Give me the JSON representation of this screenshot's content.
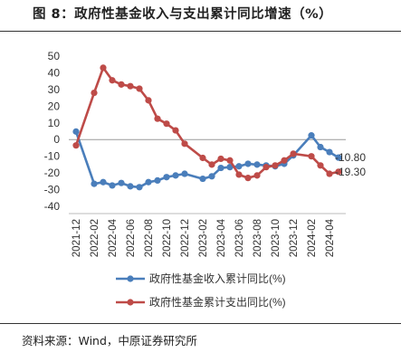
{
  "title": "图 8：政府性基金收入与支出累计同比增速（%）",
  "source": "资料来源：Wind，中原证券研究所",
  "chart_data": {
    "type": "line",
    "x": [
      "2021-12",
      "2022-01",
      "2022-02",
      "2022-03",
      "2022-04",
      "2022-05",
      "2022-06",
      "2022-07",
      "2022-08",
      "2022-09",
      "2022-10",
      "2022-11",
      "2022-12",
      "2023-01",
      "2023-02",
      "2023-03",
      "2023-04",
      "2023-05",
      "2023-06",
      "2023-07",
      "2023-08",
      "2023-09",
      "2023-10",
      "2023-11",
      "2023-12",
      "2024-01",
      "2024-02",
      "2024-03",
      "2024-04",
      "2024-05"
    ],
    "x_tick_labels": [
      "2021-12",
      "2022-02",
      "2022-04",
      "2022-06",
      "2022-08",
      "2022-10",
      "2022-12",
      "2023-02",
      "2023-04",
      "2023-06",
      "2023-08",
      "2023-10",
      "2023-12",
      "2024-02",
      "2024-04"
    ],
    "ylim": [
      -40,
      50
    ],
    "yticks": [
      -40,
      -30,
      -20,
      -10,
      0,
      10,
      20,
      30,
      40,
      50
    ],
    "grid": false,
    "legend_position": "bottom",
    "series": [
      {
        "name": "政府性基金收入累计同比(%)",
        "color": "#4A7EBB",
        "values": [
          4.8,
          null,
          -26.5,
          -25.5,
          -27.5,
          -26.0,
          -28.0,
          -28.5,
          -25.5,
          -24.5,
          -22.5,
          -21.5,
          -20.5,
          null,
          -23.5,
          -22.0,
          -17.0,
          -16.5,
          -16.0,
          -14.5,
          -15.0,
          -15.5,
          -16.0,
          -14.5,
          -9.5,
          null,
          2.5,
          -4.5,
          -7.5,
          -10.8
        ],
        "end_label": "-10.80"
      },
      {
        "name": "政府性基金累计支出同比(%)",
        "color": "#BE4B48",
        "values": [
          -3.5,
          null,
          28.0,
          43.0,
          35.5,
          33.0,
          32.0,
          30.5,
          23.5,
          12.5,
          9.5,
          5.5,
          -2.5,
          null,
          -11.0,
          -15.0,
          -11.5,
          -12.5,
          -21.0,
          -23.0,
          -21.5,
          -16.5,
          -15.5,
          -12.5,
          -8.5,
          null,
          -10.0,
          -15.5,
          -20.5,
          -19.3
        ],
        "end_label": "-19.30"
      }
    ]
  }
}
